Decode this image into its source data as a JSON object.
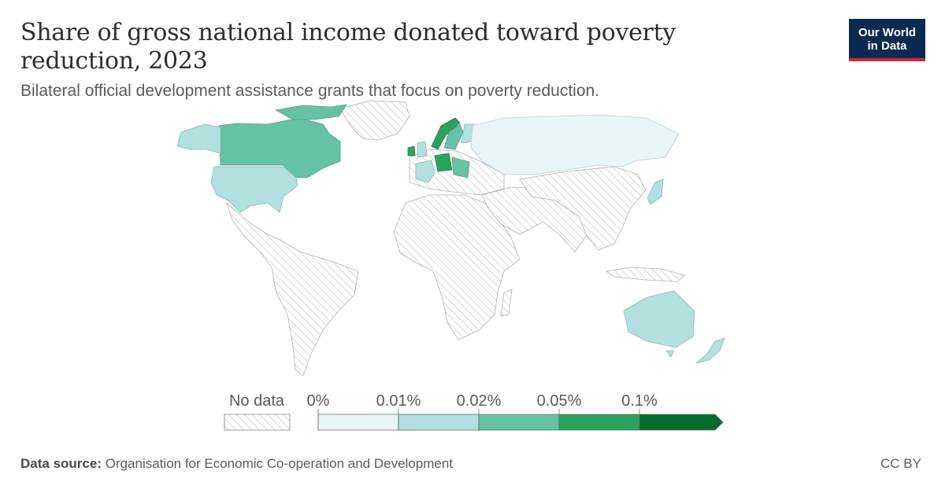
{
  "header": {
    "title": "Share of gross national income donated toward poverty reduction, 2023",
    "subtitle": "Bilateral official development assistance grants that focus on poverty reduction."
  },
  "logo": {
    "line1": "Our World",
    "line2": "in Data",
    "bg": "#0c2a51",
    "accent": "#ce2b37"
  },
  "legend": {
    "no_data_label": "No data",
    "bins": [
      {
        "label": "0%",
        "color": "#e8f6f7"
      },
      {
        "label": "0.01%",
        "color": "#b1e0df"
      },
      {
        "label": "0.02%",
        "color": "#66c2a4"
      },
      {
        "label": "0.05%",
        "color": "#2ca25f"
      },
      {
        "label": "0.1%",
        "color": "#006d2c"
      }
    ]
  },
  "map_regions": [
    {
      "region": "Canada",
      "bin": 2
    },
    {
      "region": "United States",
      "bin": 1
    },
    {
      "region": "Russia",
      "bin": 0
    },
    {
      "region": "Australia",
      "bin": 1
    },
    {
      "region": "New Zealand",
      "bin": 1
    },
    {
      "region": "Japan",
      "bin": 1
    },
    {
      "region": "Norway",
      "bin": 3
    },
    {
      "region": "Sweden",
      "bin": 2
    },
    {
      "region": "Denmark",
      "bin": 3
    },
    {
      "region": "Germany",
      "bin": 3
    },
    {
      "region": "France",
      "bin": 1
    },
    {
      "region": "Ireland",
      "bin": 3
    },
    {
      "region": "United Kingdom",
      "bin": 1
    }
  ],
  "footer": {
    "source_label": "Data source:",
    "source_text": "Organisation for Economic Co-operation and Development",
    "license": "CC BY"
  }
}
